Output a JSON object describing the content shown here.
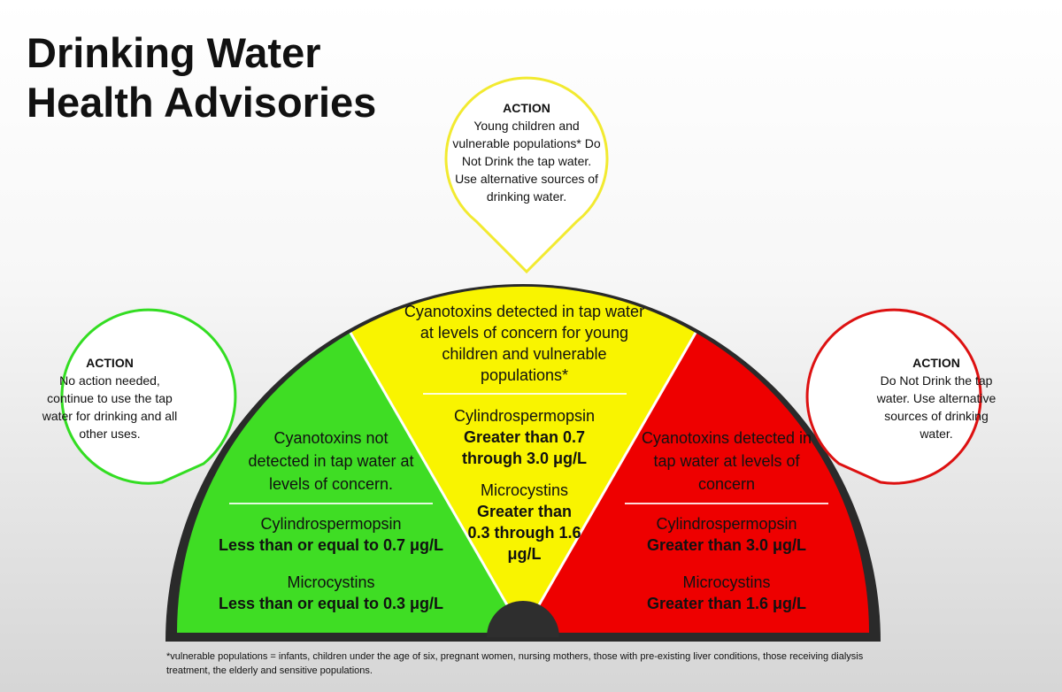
{
  "title": {
    "line1": "Drinking Water",
    "line2": "Health Advisories"
  },
  "colors": {
    "green": "#3fdd24",
    "yellow": "#f9f400",
    "red": "#ee0000",
    "rim": "#2a2a2a",
    "hub": "#2e2e2e",
    "bubble_yellow": "#f2ea30",
    "bubble_green": "#33dd22",
    "bubble_red": "#dd1111"
  },
  "bubbles": {
    "left": {
      "heading": "ACTION",
      "body": "No action needed, continue to use the tap water for drinking and all other uses."
    },
    "top": {
      "heading": "ACTION",
      "body": "Young children and vulnerable populations* Do Not Drink the tap water. Use alternative sources of drinking water."
    },
    "right": {
      "heading": "ACTION",
      "body": "Do Not Drink the tap water. Use alternative sources of drinking water."
    }
  },
  "segments": {
    "green": {
      "heading": "Cyanotoxins not detected in tap water at levels of concern.",
      "toxin1": "Cylindrospermopsin",
      "value1": "Less than or equal to 0.7 μg/L",
      "toxin2": "Microcystins",
      "value2": "Less than or equal to 0.3 μg/L"
    },
    "yellow": {
      "heading": "Cyanotoxins detected in tap water at levels of concern for young children and vulnerable populations*",
      "toxin1": "Cylindrospermopsin",
      "value1": "Greater than 0.7 through 3.0 μg/L",
      "toxin2": "Microcystins",
      "value2": "Greater than 0.3 through 1.6 μg/L"
    },
    "red": {
      "heading": "Cyanotoxins detected in tap water at levels of concern",
      "toxin1": "Cylindrospermopsin",
      "value1": "Greater than 3.0 μg/L",
      "toxin2": "Microcystins",
      "value2": "Greater than 1.6 μg/L"
    }
  },
  "footnote": "*vulnerable populations = infants, children under the age of six, pregnant women, nursing mothers, those with pre-existing liver conditions, those receiving dialysis treatment, the elderly and sensitive populations."
}
